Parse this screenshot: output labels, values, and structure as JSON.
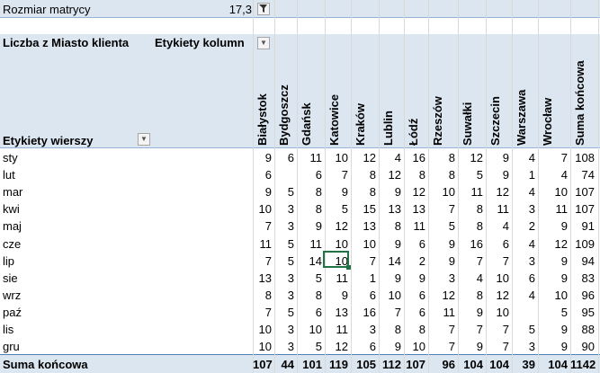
{
  "filter": {
    "label": "Rozmiar matrycy",
    "value": "17,3",
    "icon": "filter-icon"
  },
  "pivot": {
    "value_field": "Liczba z Miasto klienta",
    "col_label": "Etykiety kolumn",
    "row_label": "Etykiety wierszy",
    "columns": [
      "Białystok",
      "Bydgoszcz",
      "Gdańsk",
      "Katowice",
      "Kraków",
      "Lublin",
      "Łódź",
      "Rzeszów",
      "Suwałki",
      "Szczecin",
      "Warszawa",
      "Wrocław",
      "Suma końcowa"
    ],
    "rows": [
      {
        "label": "sty",
        "values": [
          "9",
          "6",
          "11",
          "10",
          "12",
          "4",
          "16",
          "8",
          "12",
          "9",
          "4",
          "7",
          "108"
        ]
      },
      {
        "label": "lut",
        "values": [
          "6",
          "",
          "6",
          "7",
          "8",
          "12",
          "8",
          "8",
          "5",
          "9",
          "1",
          "4",
          "74"
        ]
      },
      {
        "label": "mar",
        "values": [
          "9",
          "5",
          "8",
          "9",
          "8",
          "9",
          "12",
          "10",
          "11",
          "12",
          "4",
          "10",
          "107"
        ]
      },
      {
        "label": "kwi",
        "values": [
          "10",
          "3",
          "8",
          "5",
          "15",
          "13",
          "13",
          "7",
          "8",
          "11",
          "3",
          "11",
          "107"
        ]
      },
      {
        "label": "maj",
        "values": [
          "7",
          "3",
          "9",
          "12",
          "13",
          "8",
          "11",
          "5",
          "8",
          "4",
          "2",
          "9",
          "91"
        ]
      },
      {
        "label": "cze",
        "values": [
          "11",
          "5",
          "11",
          "10",
          "10",
          "9",
          "6",
          "9",
          "16",
          "6",
          "4",
          "12",
          "109"
        ]
      },
      {
        "label": "lip",
        "values": [
          "7",
          "5",
          "14",
          "10",
          "7",
          "14",
          "2",
          "9",
          "7",
          "7",
          "3",
          "9",
          "94"
        ]
      },
      {
        "label": "sie",
        "values": [
          "13",
          "3",
          "5",
          "11",
          "1",
          "9",
          "9",
          "3",
          "4",
          "10",
          "6",
          "9",
          "83"
        ]
      },
      {
        "label": "wrz",
        "values": [
          "8",
          "3",
          "8",
          "9",
          "6",
          "10",
          "6",
          "12",
          "8",
          "12",
          "4",
          "10",
          "96"
        ]
      },
      {
        "label": "paź",
        "values": [
          "7",
          "5",
          "6",
          "13",
          "16",
          "7",
          "6",
          "11",
          "9",
          "10",
          "",
          "5",
          "95"
        ]
      },
      {
        "label": "lis",
        "values": [
          "10",
          "3",
          "10",
          "11",
          "3",
          "8",
          "8",
          "7",
          "7",
          "7",
          "5",
          "9",
          "88"
        ]
      },
      {
        "label": "gru",
        "values": [
          "10",
          "3",
          "5",
          "12",
          "6",
          "9",
          "10",
          "7",
          "9",
          "7",
          "3",
          "9",
          "90"
        ]
      }
    ],
    "total": {
      "label": "Suma końcowa",
      "values": [
        "107",
        "44",
        "101",
        "119",
        "105",
        "112",
        "107",
        "96",
        "104",
        "104",
        "39",
        "104",
        "1142"
      ]
    }
  }
}
